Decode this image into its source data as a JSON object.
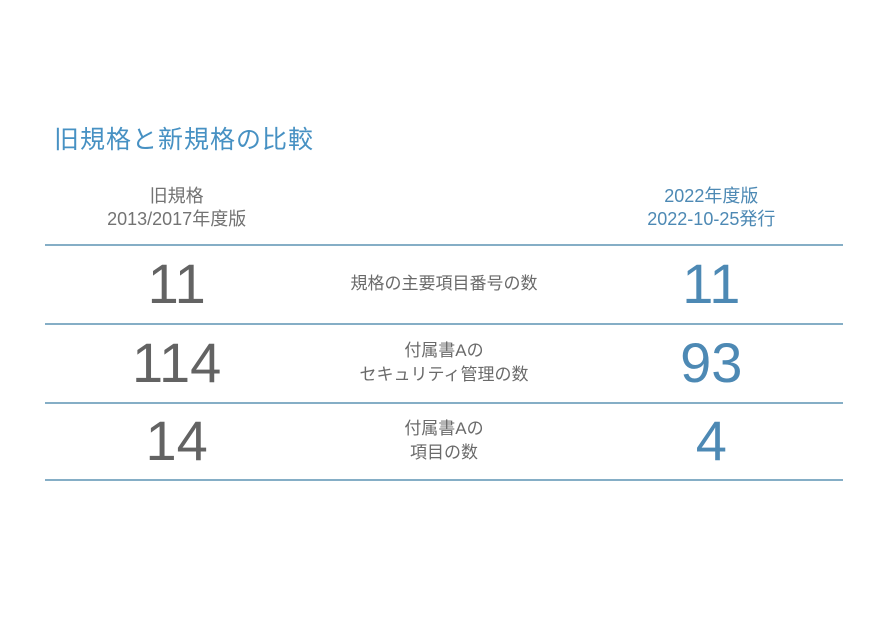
{
  "slide": {
    "title": "旧規格と新規格の比較"
  },
  "table": {
    "header": {
      "old": "旧規格\n2013/2017年度版",
      "new": "2022年度版\n2022-10-25発行"
    },
    "rows": [
      {
        "old_value": "11",
        "label": "規格の主要項目番号の数",
        "new_value": "11"
      },
      {
        "old_value": "114",
        "label": "付属書Aの\nセキュリティ管理の数",
        "new_value": "93"
      },
      {
        "old_value": "14",
        "label": "付属書Aの\n項目の数",
        "new_value": "4"
      }
    ]
  },
  "colors": {
    "accent_blue": "#4791c3",
    "number_gray": "#636363",
    "number_blue": "#4d89b4",
    "header_gray": "#737373",
    "label_gray": "#6a6a6a",
    "line_blue": "#85aec6"
  }
}
